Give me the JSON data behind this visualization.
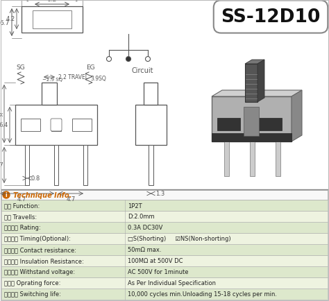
{
  "title": "SS-12D10",
  "bg_color": "#ffffff",
  "table_header": "Technique Info.",
  "table_header_color": "#cc6600",
  "table_bg_even": "#dde8cc",
  "table_bg_odd": "#eef3e0",
  "table_border": "#aaaaaa",
  "rows": [
    [
      "性能 Function:",
      "1P2T"
    ],
    [
      "行程 Travells:",
      "D:2.0mm"
    ],
    [
      "使用功率 Rating:",
      "0.3A DC30V"
    ],
    [
      "切换类别 Timing(Optional):",
      "□S(Shorting)     ☑NS(Non-shorting)"
    ],
    [
      "接触电阔 Contact resistance:",
      "50mΩ max."
    ],
    [
      "绝缘电阔 Insulation Resistance:",
      "100MΩ at 500V DC"
    ],
    [
      "耐抹电压 Withstand voltage:",
      "AC 500V for 1minute"
    ],
    [
      "操作力 Oprating force:",
      "As Per Individual Specification"
    ],
    [
      "使用寿命 Switching life:",
      "10,000 cycles min.Unloading 15-18 cycles per min."
    ]
  ],
  "dim_color": "#555555",
  "drawing_color": "#555555",
  "photo_body_color": "#aaaaaa",
  "photo_dark_color": "#444444",
  "photo_knob_color": "#555555",
  "photo_pin_color": "#cccccc"
}
